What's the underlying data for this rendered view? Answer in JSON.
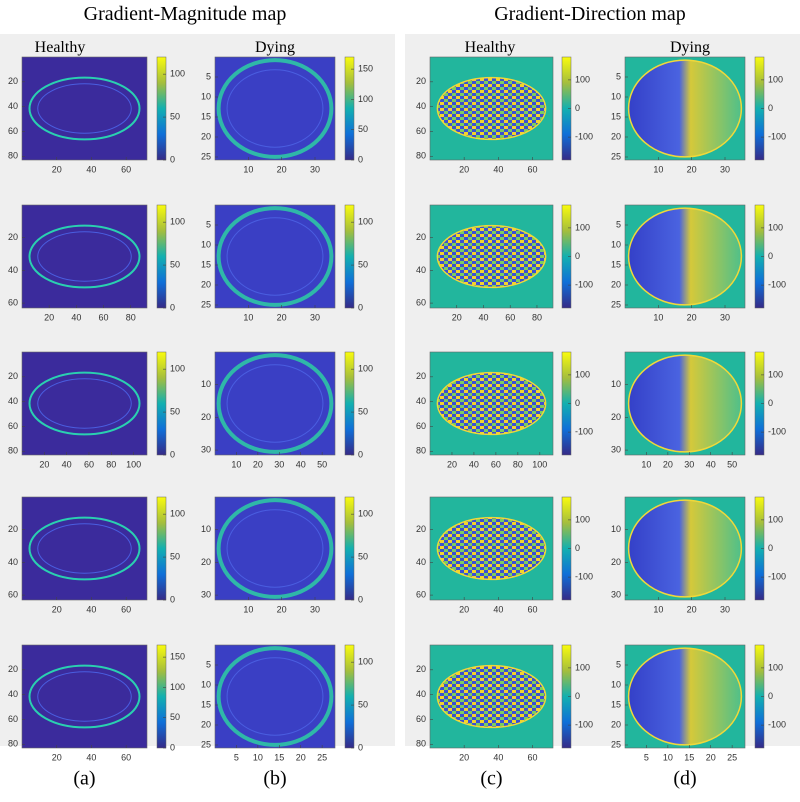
{
  "titles": [
    "Gradient-Magnitude map",
    "Gradient-Direction map"
  ],
  "columns": [
    {
      "header": "Healthy",
      "caption": "(a)",
      "panels": [
        {
          "yticks": [
            20,
            40,
            60,
            80
          ],
          "xticks": [
            20,
            40,
            60
          ],
          "cticks": [
            0,
            50,
            100
          ]
        },
        {
          "yticks": [
            20,
            40,
            60
          ],
          "xticks": [
            20,
            40,
            60,
            80
          ],
          "cticks": [
            0,
            50,
            100
          ]
        },
        {
          "yticks": [
            20,
            40,
            60,
            80
          ],
          "xticks": [
            20,
            40,
            60,
            80,
            100
          ],
          "cticks": [
            0,
            50,
            100
          ]
        },
        {
          "yticks": [
            20,
            40,
            60
          ],
          "xticks": [
            20,
            40,
            60
          ],
          "cticks": [
            0,
            50,
            100
          ]
        },
        {
          "yticks": [
            20,
            40,
            60,
            80
          ],
          "xticks": [
            20,
            40,
            60
          ],
          "cticks": [
            0,
            50,
            100,
            150
          ]
        }
      ]
    },
    {
      "header": "Dying",
      "caption": "(b)",
      "panels": [
        {
          "yticks": [
            5,
            10,
            15,
            20,
            25
          ],
          "xticks": [
            10,
            20,
            30
          ],
          "cticks": [
            0,
            50,
            100,
            150
          ]
        },
        {
          "yticks": [
            5,
            10,
            15,
            20,
            25
          ],
          "xticks": [
            10,
            20,
            30
          ],
          "cticks": [
            0,
            50,
            100
          ]
        },
        {
          "yticks": [
            10,
            20,
            30
          ],
          "xticks": [
            10,
            20,
            30,
            40,
            50
          ],
          "cticks": [
            0,
            50,
            100
          ]
        },
        {
          "yticks": [
            10,
            20,
            30
          ],
          "xticks": [
            10,
            20,
            30
          ],
          "cticks": [
            0,
            50,
            100
          ]
        },
        {
          "yticks": [
            5,
            10,
            15,
            20,
            25
          ],
          "xticks": [
            5,
            10,
            15,
            20,
            25
          ],
          "cticks": [
            0,
            50,
            100
          ]
        }
      ]
    },
    {
      "header": "Healthy",
      "caption": "(c)",
      "panels": [
        {
          "yticks": [
            20,
            40,
            60,
            80
          ],
          "xticks": [
            20,
            40,
            60
          ],
          "cticks": [
            100,
            0,
            -100
          ]
        },
        {
          "yticks": [
            20,
            40,
            60
          ],
          "xticks": [
            20,
            40,
            60,
            80
          ],
          "cticks": [
            100,
            0,
            -100
          ]
        },
        {
          "yticks": [
            20,
            40,
            60,
            80
          ],
          "xticks": [
            20,
            40,
            60,
            80,
            100
          ],
          "cticks": [
            100,
            0,
            -100
          ]
        },
        {
          "yticks": [
            20,
            40,
            60
          ],
          "xticks": [
            20,
            40,
            60
          ],
          "cticks": [
            100,
            0,
            -100
          ]
        },
        {
          "yticks": [
            20,
            40,
            60,
            80
          ],
          "xticks": [
            20,
            40,
            60
          ],
          "cticks": [
            100,
            0,
            -100
          ]
        }
      ]
    },
    {
      "header": "Dying",
      "caption": "(d)",
      "panels": [
        {
          "yticks": [
            5,
            10,
            15,
            20,
            25
          ],
          "xticks": [
            10,
            20,
            30
          ],
          "cticks": [
            100,
            0,
            -100
          ]
        },
        {
          "yticks": [
            5,
            10,
            15,
            20,
            25
          ],
          "xticks": [
            10,
            20,
            30
          ],
          "cticks": [
            100,
            0,
            -100
          ]
        },
        {
          "yticks": [
            10,
            20,
            30
          ],
          "xticks": [
            10,
            20,
            30,
            40,
            50
          ],
          "cticks": [
            100,
            0,
            -100
          ]
        },
        {
          "yticks": [
            10,
            20,
            30
          ],
          "xticks": [
            10,
            20,
            30
          ],
          "cticks": [
            100,
            0,
            -100
          ]
        },
        {
          "yticks": [
            5,
            10,
            15,
            20,
            25
          ],
          "xticks": [
            5,
            10,
            15,
            20,
            25
          ],
          "cticks": [
            100,
            0,
            -100
          ]
        }
      ]
    }
  ]
}
